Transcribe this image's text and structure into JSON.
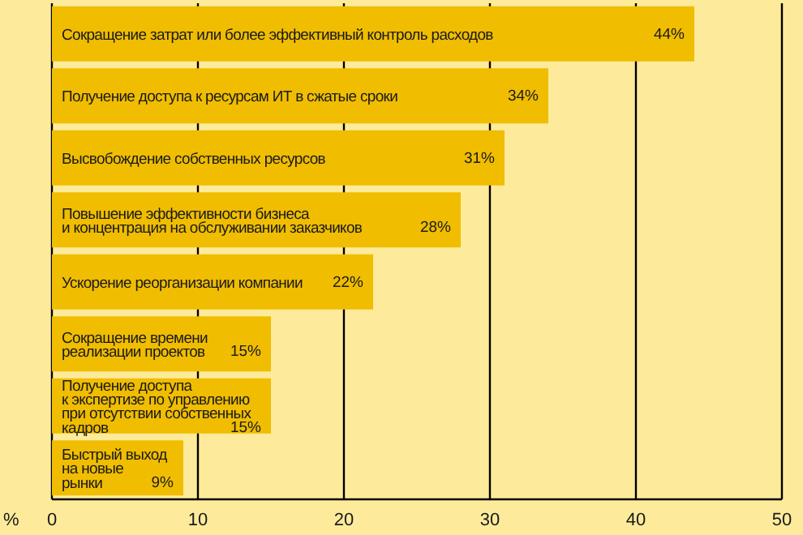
{
  "chart_data": {
    "type": "bar",
    "orientation": "horizontal",
    "categories": [
      "Сокращение затрат или более эффективный контроль расходов",
      "Получение доступа к ресурсам ИТ в сжатые сроки",
      "Высвобождение собственных ресурсов",
      "Повышение эффективности бизнеса\nи концентрация на обслуживании заказчиков",
      "Ускорение реорганизации компании",
      "Сокращение времени\nреализации проектов",
      "Получение доступа\nк экспертизе по управлению\nпри отсутствии собственных\nкадров",
      "Быстрый выход\nна новые\nрынки"
    ],
    "values": [
      44,
      34,
      31,
      28,
      22,
      15,
      15,
      9
    ],
    "value_labels": [
      "44%",
      "34%",
      "31%",
      "28%",
      "22%",
      "15%",
      "15%",
      "9%"
    ],
    "color": "#f0bd00",
    "xlabel": "%",
    "xlim": [
      0,
      50
    ],
    "xticks": [
      0,
      10,
      20,
      30,
      40,
      50
    ],
    "grid": "x"
  }
}
